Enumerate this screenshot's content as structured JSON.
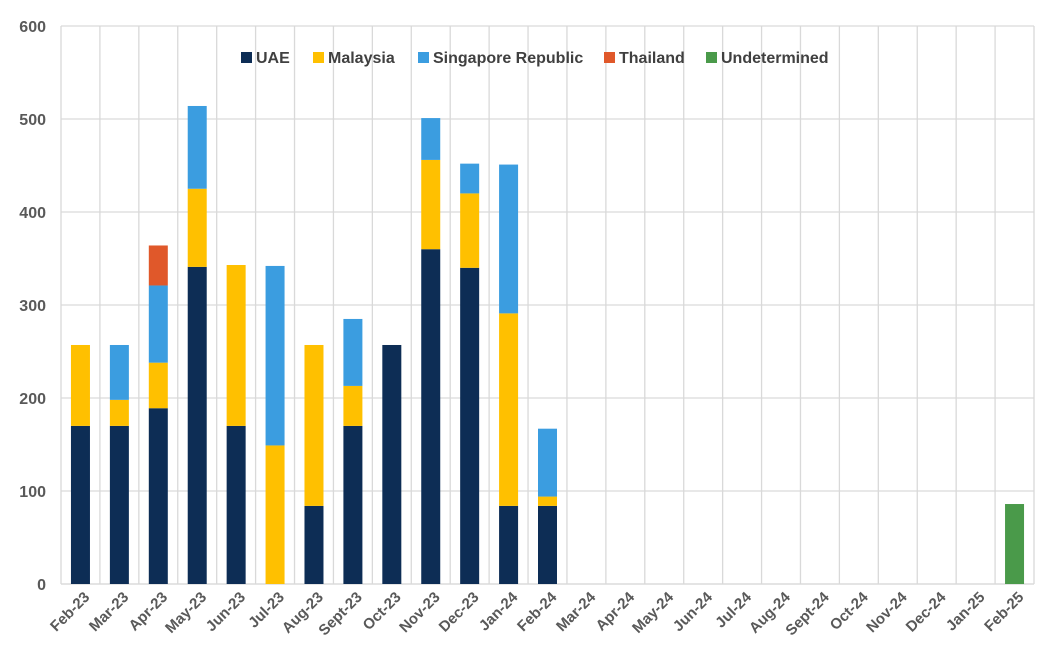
{
  "chart_data": {
    "type": "bar",
    "stacked": true,
    "title": "",
    "xlabel": "",
    "ylabel": "",
    "ylim": [
      0,
      600
    ],
    "yticks": [
      0,
      100,
      200,
      300,
      400,
      500,
      600
    ],
    "grid": true,
    "legend_position": "top-center",
    "categories": [
      "Feb-23",
      "Mar-23",
      "Apr-23",
      "May-23",
      "Jun-23",
      "Jul-23",
      "Aug-23",
      "Sept-23",
      "Oct-23",
      "Nov-23",
      "Dec-23",
      "Jan-24",
      "Feb-24",
      "Mar-24",
      "Apr-24",
      "May-24",
      "Jun-24",
      "Jul-24",
      "Aug-24",
      "Sept-24",
      "Oct-24",
      "Nov-24",
      "Dec-24",
      "Jan-25",
      "Feb-25"
    ],
    "series": [
      {
        "name": "UAE",
        "color": "#0d2d55",
        "values": [
          170,
          170,
          189,
          341,
          170,
          0,
          84,
          170,
          257,
          360,
          340,
          84,
          84,
          0,
          0,
          0,
          0,
          0,
          0,
          0,
          0,
          0,
          0,
          0,
          0
        ]
      },
      {
        "name": "Malaysia",
        "color": "#ffc000",
        "values": [
          87,
          28,
          49,
          84,
          173,
          149,
          173,
          43,
          0,
          96,
          80,
          207,
          10,
          0,
          0,
          0,
          0,
          0,
          0,
          0,
          0,
          0,
          0,
          0,
          0
        ]
      },
      {
        "name": "Singapore Republic",
        "color": "#3b9de0",
        "values": [
          0,
          59,
          83,
          89,
          0,
          193,
          0,
          72,
          0,
          45,
          32,
          160,
          73,
          0,
          0,
          0,
          0,
          0,
          0,
          0,
          0,
          0,
          0,
          0,
          0
        ]
      },
      {
        "name": "Thailand",
        "color": "#e0582a",
        "values": [
          0,
          0,
          43,
          0,
          0,
          0,
          0,
          0,
          0,
          0,
          0,
          0,
          0,
          0,
          0,
          0,
          0,
          0,
          0,
          0,
          0,
          0,
          0,
          0,
          0
        ]
      },
      {
        "name": "Undetermined",
        "color": "#4a9a4a",
        "values": [
          0,
          0,
          0,
          0,
          0,
          0,
          0,
          0,
          0,
          0,
          0,
          0,
          0,
          0,
          0,
          0,
          0,
          0,
          0,
          0,
          0,
          0,
          0,
          0,
          86
        ]
      }
    ]
  }
}
